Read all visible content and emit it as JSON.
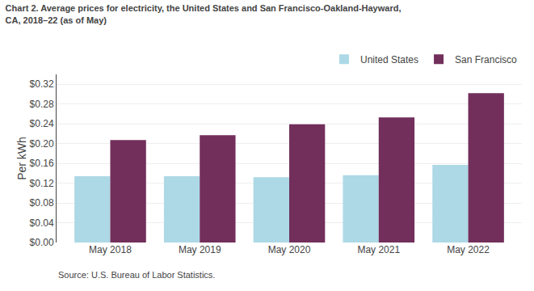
{
  "chart_data": {
    "type": "bar",
    "title": "Chart 2. Average prices for electricity, the United States and San Francisco-Oakland-Hayward,\nCA, 2018–22 (as of May)",
    "y_label": "Per kWh",
    "annotations": [
      "Source: U.S. Bureau of Labor Statistics."
    ],
    "categories": [
      "May 2018",
      "May 2019",
      "May 2020",
      "May 2021",
      "May 2022"
    ],
    "series": [
      {
        "name": "United States",
        "color": "#ADD8E6",
        "values": [
          0.134,
          0.134,
          0.132,
          0.136,
          0.157
        ]
      },
      {
        "name": "San Francisco",
        "color": "#722F5B",
        "values": [
          0.207,
          0.217,
          0.239,
          0.253,
          0.302
        ]
      }
    ],
    "ylim": [
      0,
      0.34
    ],
    "yticks": [
      {
        "value": 0.0,
        "label": "$0.00"
      },
      {
        "value": 0.04,
        "label": "$0.04"
      },
      {
        "value": 0.08,
        "label": "$0.08"
      },
      {
        "value": 0.12,
        "label": "$0.12"
      },
      {
        "value": 0.16,
        "label": "$0.16"
      },
      {
        "value": 0.2,
        "label": "$0.20"
      },
      {
        "value": 0.24,
        "label": "$0.24"
      },
      {
        "value": 0.28,
        "label": "$0.28"
      },
      {
        "value": 0.32,
        "label": "$0.32"
      }
    ],
    "grid": true,
    "legend": "top"
  }
}
